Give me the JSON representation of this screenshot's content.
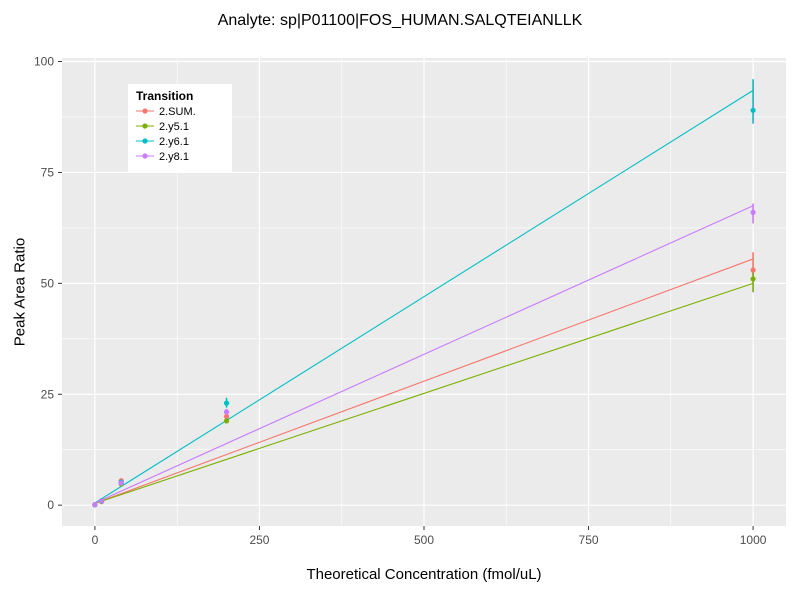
{
  "chart_data": {
    "type": "scatter-line",
    "title": "Analyte: sp|P01100|FOS_HUMAN.SALQTEIANLLK",
    "xlabel": "Theoretical Concentration (fmol/uL)",
    "ylabel": "Peak Area Ratio",
    "xlim": [
      0,
      1000
    ],
    "ylim": [
      0,
      100
    ],
    "x_ticks": [
      0,
      250,
      500,
      750,
      1000
    ],
    "y_ticks": [
      0,
      25,
      50,
      75,
      100
    ],
    "x_minor": [
      125,
      375,
      625,
      875
    ],
    "y_minor": [
      12.5,
      37.5,
      62.5,
      87.5
    ],
    "grid": true,
    "panel_bg": "#EBEBEB",
    "grid_color": "#FFFFFF",
    "tick_color": "#333333",
    "tick_label_color": "#4D4D4D",
    "legend": {
      "title": "Transition",
      "position": "top-left-inside",
      "background": "#FFFFFF"
    },
    "series": [
      {
        "name": "2.SUM.",
        "color": "#F8766D",
        "line": {
          "x": [
            0,
            1000
          ],
          "y": [
            0.4,
            55.5
          ]
        },
        "points": [
          {
            "x": 0,
            "y": 0.1
          },
          {
            "x": 10,
            "y": 0.9
          },
          {
            "x": 40,
            "y": 5.5
          },
          {
            "x": 200,
            "y": 20.0,
            "ymin": 19.2,
            "ymax": 20.8
          },
          {
            "x": 1000,
            "y": 53.0,
            "ymin": 50.5,
            "ymax": 57.0
          }
        ]
      },
      {
        "name": "2.y5.1",
        "color": "#7CAE00",
        "line": {
          "x": [
            0,
            1000
          ],
          "y": [
            0.4,
            50.0
          ]
        },
        "points": [
          {
            "x": 0,
            "y": 0.1
          },
          {
            "x": 10,
            "y": 0.8
          },
          {
            "x": 40,
            "y": 4.8
          },
          {
            "x": 200,
            "y": 19.0,
            "ymin": 18.4,
            "ymax": 19.6
          },
          {
            "x": 1000,
            "y": 51.0,
            "ymin": 48.0,
            "ymax": 52.5
          }
        ]
      },
      {
        "name": "2.y6.1",
        "color": "#00BFC4",
        "line": {
          "x": [
            0,
            1000
          ],
          "y": [
            0.5,
            93.5
          ]
        },
        "points": [
          {
            "x": 0,
            "y": 0.1
          },
          {
            "x": 10,
            "y": 1.0
          },
          {
            "x": 40,
            "y": 5.2
          },
          {
            "x": 200,
            "y": 23.0,
            "ymin": 22.0,
            "ymax": 24.2
          },
          {
            "x": 1000,
            "y": 89.0,
            "ymin": 86.0,
            "ymax": 96.0
          }
        ]
      },
      {
        "name": "2.y8.1",
        "color": "#C77CFF",
        "line": {
          "x": [
            0,
            1000
          ],
          "y": [
            0.5,
            67.5
          ]
        },
        "points": [
          {
            "x": 0,
            "y": 0.1
          },
          {
            "x": 10,
            "y": 0.9
          },
          {
            "x": 40,
            "y": 5.0
          },
          {
            "x": 200,
            "y": 21.0,
            "ymin": 20.3,
            "ymax": 21.7
          },
          {
            "x": 1000,
            "y": 66.0,
            "ymin": 63.5,
            "ymax": 68.0
          }
        ]
      }
    ]
  }
}
